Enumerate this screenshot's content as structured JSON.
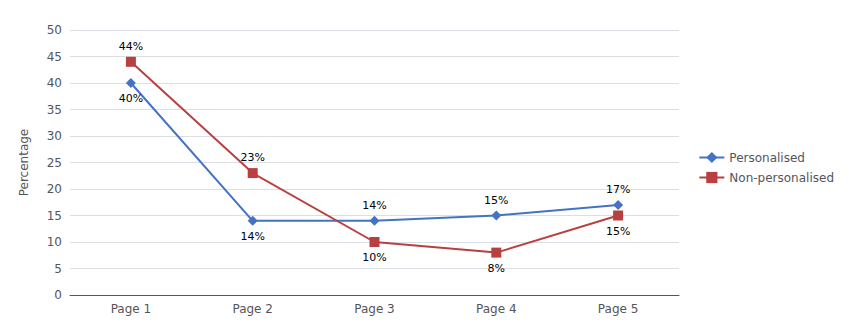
{
  "chart_data": {
    "type": "line",
    "categories": [
      "Page 1",
      "Page 2",
      "Page 3",
      "Page 4",
      "Page 5"
    ],
    "series": [
      {
        "name": "Personalised",
        "color": "#4472C4",
        "marker": "diamond",
        "values": [
          40,
          14,
          14,
          15,
          17
        ],
        "value_labels": [
          "40%",
          "14%",
          "14%",
          "15%",
          "17%"
        ]
      },
      {
        "name": "Non-personalised",
        "color": "#B84040",
        "marker": "square",
        "values": [
          44,
          23,
          10,
          8,
          15
        ],
        "value_labels": [
          "44%",
          "23%",
          "10%",
          "8%",
          "15%"
        ]
      }
    ],
    "ylabel": "Percentage",
    "ylim": [
      0,
      50
    ],
    "yticks": [
      0,
      5,
      10,
      15,
      20,
      25,
      30,
      35,
      40,
      45,
      50
    ],
    "grid": true,
    "legend": "right",
    "data_labels": true
  }
}
